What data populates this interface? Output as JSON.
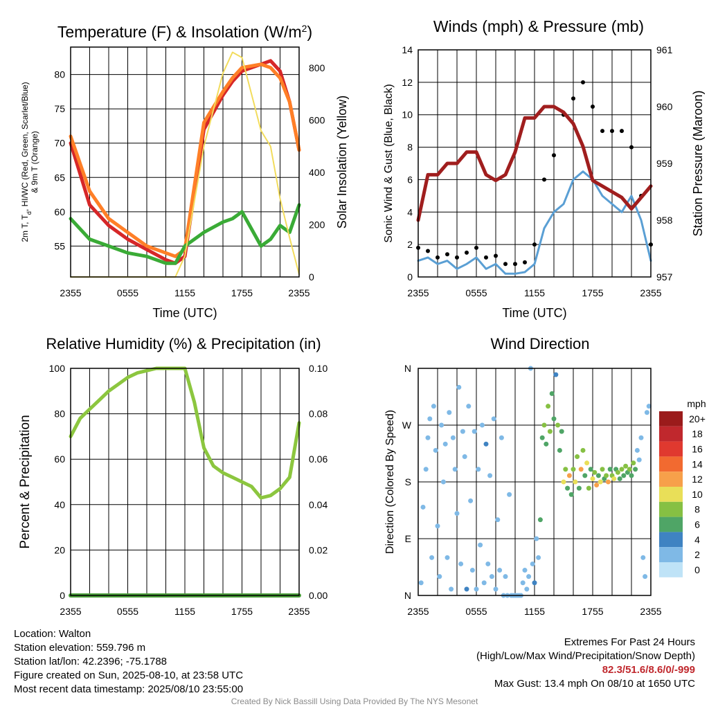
{
  "chart_data": [
    {
      "type": "line",
      "title_main": "Temperature (F) & Insolation (W/m",
      "title_sup": "2",
      "title_end": ")",
      "xlabel": "Time (UTC)",
      "ylabel_lines": [
        "2m T, T",
        "d",
        ", HI/WC (Red, Green, Scarlet/Blue)",
        "& 9m T (Orange)"
      ],
      "ylabel2": "Solar Insolation (Yellow)",
      "xticks": [
        "2355",
        "0555",
        "1155",
        "1755",
        "2355"
      ],
      "yticks": [
        55,
        60,
        65,
        70,
        75,
        80
      ],
      "yticks2": [
        0,
        200,
        400,
        600,
        800
      ],
      "ylim": [
        50.5,
        84
      ],
      "ylim2": [
        0,
        880
      ],
      "x": [
        0,
        2,
        4,
        6,
        8,
        10,
        11,
        12,
        14,
        16,
        17,
        18,
        20,
        21,
        22,
        23,
        24
      ],
      "series": [
        {
          "color": "#d62728",
          "values": [
            70,
            61,
            58,
            56,
            54.5,
            53,
            52.5,
            53.5,
            72,
            77,
            79,
            80.5,
            81.5,
            82,
            80.5,
            76,
            69
          ]
        },
        {
          "color": "#ff7f27",
          "values": [
            71,
            63,
            59,
            57,
            55,
            54,
            53.5,
            54.5,
            73,
            77.5,
            79.5,
            81,
            81.5,
            81,
            79.5,
            76,
            69
          ]
        },
        {
          "color": "#3aab36",
          "values": [
            59,
            56,
            55,
            54,
            53.5,
            52.5,
            52.5,
            55,
            57,
            58.5,
            59,
            60,
            55,
            56,
            58,
            57,
            61
          ]
        },
        {
          "color": "#f2dc5d",
          "values": [
            0,
            0,
            0,
            0,
            0,
            0,
            0,
            80,
            500,
            780,
            860,
            840,
            560,
            500,
            300,
            150,
            10
          ]
        }
      ]
    },
    {
      "type": "line",
      "title": "Winds (mph) & Pressure (mb)",
      "xlabel": "Time (UTC)",
      "ylabel": "Sonic Wind & Gust (Blue, Black)",
      "ylabel2": "Station Pressure (Maroon)",
      "xticks": [
        "2355",
        "0555",
        "1155",
        "1755",
        "2355"
      ],
      "yticks": [
        0,
        2,
        4,
        6,
        8,
        10,
        12,
        14
      ],
      "yticks2": [
        957,
        958,
        959,
        960,
        961
      ],
      "ylim": [
        0,
        14
      ],
      "ylim2": [
        957,
        961
      ],
      "x": [
        0,
        1,
        2,
        3,
        4,
        5,
        6,
        7,
        8,
        9,
        10,
        11,
        12,
        13,
        14,
        15,
        16,
        17,
        18,
        19,
        20,
        21,
        22,
        23,
        24
      ],
      "series": [
        {
          "color": "#5a9fd4",
          "values": [
            1,
            1.2,
            0.8,
            1,
            0.5,
            0.8,
            1.2,
            0.5,
            0.8,
            0.2,
            0.2,
            0.3,
            0.8,
            3,
            4,
            4.5,
            6,
            6.5,
            6,
            5,
            4.5,
            4,
            5,
            3.5,
            1
          ]
        },
        {
          "color": "#000000",
          "values": [
            1.8,
            1.6,
            1.2,
            1.4,
            1.2,
            1.5,
            1.8,
            1.2,
            1.3,
            0.8,
            0.8,
            0.9,
            2,
            6,
            7.5,
            10,
            11,
            12,
            10.5,
            9,
            9,
            9,
            8,
            5,
            2
          ]
        },
        {
          "color": "#a01e1e",
          "values": [
            958,
            958.8,
            958.8,
            959,
            959,
            959.2,
            959.2,
            958.8,
            958.7,
            958.8,
            959.2,
            959.8,
            959.8,
            960,
            960,
            959.9,
            959.7,
            959.3,
            958.7,
            958.6,
            958.5,
            958.4,
            958.2,
            958.4,
            958.6
          ]
        }
      ]
    },
    {
      "type": "line",
      "title": "Relative Humidity (%) & Precipitation (in)",
      "xlabel": "",
      "ylabel": "Percent & Precipitation",
      "xticks": [
        "2355",
        "0555",
        "1155",
        "1755",
        "2355"
      ],
      "yticks": [
        0,
        20,
        40,
        60,
        80,
        100
      ],
      "yticks2": [
        "0.00",
        "0.02",
        "0.04",
        "0.06",
        "0.08",
        "0.10"
      ],
      "ylim": [
        0,
        100
      ],
      "ylim2": [
        0,
        0.1
      ],
      "x": [
        0,
        1,
        2,
        3,
        4,
        5,
        6,
        7,
        8,
        9,
        10,
        11,
        12,
        13,
        14,
        15,
        16,
        17,
        18,
        19,
        20,
        21,
        22,
        23,
        24
      ],
      "series": [
        {
          "color": "#8cc63f",
          "values": [
            70,
            78,
            82,
            86,
            90,
            93,
            96,
            98,
            99,
            100,
            100,
            100,
            100,
            85,
            65,
            57,
            54,
            52,
            50,
            48,
            43,
            44,
            47,
            52,
            76
          ]
        },
        {
          "color": "#4a9e3a",
          "values": [
            0,
            0,
            0,
            0,
            0,
            0,
            0,
            0,
            0,
            0,
            0,
            0,
            0,
            0,
            0,
            0,
            0,
            0,
            0,
            0,
            0,
            0,
            0,
            0,
            0
          ]
        }
      ]
    },
    {
      "type": "scatter",
      "title": "Wind Direction",
      "ylabel": "Direction (Colored By Speed)",
      "xticks": [
        "2355",
        "0555",
        "1155",
        "1755",
        "2355"
      ],
      "yticks": [
        "N",
        "E",
        "S",
        "W",
        "N"
      ],
      "ylim": [
        0,
        360
      ],
      "legend_title": "mph",
      "legend_labels": [
        "20+",
        "18",
        "16",
        "14",
        "12",
        "10",
        "8",
        "6",
        "4",
        "2",
        "0"
      ],
      "legend_colors": [
        "#9b1b1b",
        "#c0282d",
        "#e0392f",
        "#f26a30",
        "#f7a04a",
        "#e9df58",
        "#86c043",
        "#4fa566",
        "#3f83c2",
        "#7fb9e6",
        "#bfe3f7"
      ],
      "points": [
        {
          "x": 0.3,
          "y": 20,
          "s": 1
        },
        {
          "x": 0.5,
          "y": 140,
          "s": 1
        },
        {
          "x": 0.8,
          "y": 200,
          "s": 1
        },
        {
          "x": 1.0,
          "y": 250,
          "s": 1
        },
        {
          "x": 1.2,
          "y": 280,
          "s": 1
        },
        {
          "x": 1.4,
          "y": 60,
          "s": 1
        },
        {
          "x": 1.6,
          "y": 300,
          "s": 1
        },
        {
          "x": 1.8,
          "y": 230,
          "s": 1
        },
        {
          "x": 2.0,
          "y": 110,
          "s": 1
        },
        {
          "x": 2.2,
          "y": 30,
          "s": 1
        },
        {
          "x": 2.4,
          "y": 270,
          "s": 1
        },
        {
          "x": 2.6,
          "y": 180,
          "s": 1
        },
        {
          "x": 2.8,
          "y": 240,
          "s": 1
        },
        {
          "x": 3.0,
          "y": 60,
          "s": 1
        },
        {
          "x": 3.2,
          "y": 290,
          "s": 1
        },
        {
          "x": 3.4,
          "y": 10,
          "s": 1
        },
        {
          "x": 3.6,
          "y": 250,
          "s": 1
        },
        {
          "x": 3.8,
          "y": 200,
          "s": 1
        },
        {
          "x": 4.0,
          "y": 130,
          "s": 1
        },
        {
          "x": 4.2,
          "y": 330,
          "s": 1
        },
        {
          "x": 4.4,
          "y": 50,
          "s": 1
        },
        {
          "x": 4.6,
          "y": 260,
          "s": 1
        },
        {
          "x": 4.8,
          "y": 220,
          "s": 1
        },
        {
          "x": 5.0,
          "y": 10,
          "s": 2
        },
        {
          "x": 5.2,
          "y": 300,
          "s": 1
        },
        {
          "x": 5.4,
          "y": 150,
          "s": 1
        },
        {
          "x": 5.6,
          "y": 40,
          "s": 1
        },
        {
          "x": 5.8,
          "y": 260,
          "s": 1
        },
        {
          "x": 6.0,
          "y": 10,
          "s": 1
        },
        {
          "x": 6.2,
          "y": 200,
          "s": 1
        },
        {
          "x": 6.4,
          "y": 80,
          "s": 1
        },
        {
          "x": 6.6,
          "y": 270,
          "s": 1
        },
        {
          "x": 6.8,
          "y": 20,
          "s": 1
        },
        {
          "x": 7.0,
          "y": 240,
          "s": 2
        },
        {
          "x": 7.2,
          "y": 50,
          "s": 1
        },
        {
          "x": 7.4,
          "y": 190,
          "s": 1
        },
        {
          "x": 7.6,
          "y": 30,
          "s": 1
        },
        {
          "x": 7.8,
          "y": 280,
          "s": 1
        },
        {
          "x": 8.0,
          "y": 10,
          "s": 1
        },
        {
          "x": 8.2,
          "y": 120,
          "s": 1
        },
        {
          "x": 8.4,
          "y": 40,
          "s": 1
        },
        {
          "x": 8.6,
          "y": 250,
          "s": 1
        },
        {
          "x": 8.8,
          "y": 0,
          "s": 1
        },
        {
          "x": 9.0,
          "y": 30,
          "s": 1
        },
        {
          "x": 9.2,
          "y": 0,
          "s": 1
        },
        {
          "x": 9.4,
          "y": 160,
          "s": 1
        },
        {
          "x": 9.6,
          "y": 0,
          "s": 1
        },
        {
          "x": 9.8,
          "y": 0,
          "s": 1
        },
        {
          "x": 10.0,
          "y": 0,
          "s": 1
        },
        {
          "x": 10.2,
          "y": 0,
          "s": 1
        },
        {
          "x": 10.4,
          "y": 0,
          "s": 1
        },
        {
          "x": 10.6,
          "y": 0,
          "s": 1
        },
        {
          "x": 10.8,
          "y": 20,
          "s": 1
        },
        {
          "x": 11.0,
          "y": 40,
          "s": 1
        },
        {
          "x": 11.2,
          "y": 10,
          "s": 1
        },
        {
          "x": 11.4,
          "y": 30,
          "s": 1
        },
        {
          "x": 11.6,
          "y": 360,
          "s": 1
        },
        {
          "x": 11.8,
          "y": 50,
          "s": 1
        },
        {
          "x": 12.0,
          "y": 20,
          "s": 2
        },
        {
          "x": 12.2,
          "y": 90,
          "s": 1
        },
        {
          "x": 12.4,
          "y": 60,
          "s": 1
        },
        {
          "x": 12.6,
          "y": 120,
          "s": 3
        },
        {
          "x": 12.8,
          "y": 250,
          "s": 3
        },
        {
          "x": 13.0,
          "y": 270,
          "s": 4
        },
        {
          "x": 13.2,
          "y": 240,
          "s": 3
        },
        {
          "x": 13.4,
          "y": 300,
          "s": 4
        },
        {
          "x": 13.6,
          "y": 260,
          "s": 4
        },
        {
          "x": 13.8,
          "y": 320,
          "s": 3
        },
        {
          "x": 14.0,
          "y": 280,
          "s": 3
        },
        {
          "x": 14.2,
          "y": 350,
          "s": 2
        },
        {
          "x": 14.4,
          "y": 270,
          "s": 4
        },
        {
          "x": 14.6,
          "y": 230,
          "s": 3
        },
        {
          "x": 14.8,
          "y": 260,
          "s": 3
        },
        {
          "x": 15.0,
          "y": 180,
          "s": 5
        },
        {
          "x": 15.2,
          "y": 200,
          "s": 4
        },
        {
          "x": 15.4,
          "y": 170,
          "s": 3
        },
        {
          "x": 15.6,
          "y": 190,
          "s": 6
        },
        {
          "x": 15.8,
          "y": 160,
          "s": 3
        },
        {
          "x": 16.0,
          "y": 200,
          "s": 4
        },
        {
          "x": 16.2,
          "y": 180,
          "s": 5
        },
        {
          "x": 16.4,
          "y": 220,
          "s": 4
        },
        {
          "x": 16.6,
          "y": 170,
          "s": 3
        },
        {
          "x": 16.8,
          "y": 200,
          "s": 6
        },
        {
          "x": 17.0,
          "y": 230,
          "s": 4
        },
        {
          "x": 17.2,
          "y": 190,
          "s": 3
        },
        {
          "x": 17.4,
          "y": 210,
          "s": 5
        },
        {
          "x": 17.6,
          "y": 170,
          "s": 4
        },
        {
          "x": 17.8,
          "y": 200,
          "s": 3
        },
        {
          "x": 18.0,
          "y": 185,
          "s": 5
        },
        {
          "x": 18.2,
          "y": 195,
          "s": 4
        },
        {
          "x": 18.4,
          "y": 175,
          "s": 6
        },
        {
          "x": 18.6,
          "y": 190,
          "s": 3
        },
        {
          "x": 18.8,
          "y": 180,
          "s": 5
        },
        {
          "x": 19.0,
          "y": 200,
          "s": 4
        },
        {
          "x": 19.2,
          "y": 185,
          "s": 3
        },
        {
          "x": 19.4,
          "y": 190,
          "s": 4
        },
        {
          "x": 19.6,
          "y": 180,
          "s": 6
        },
        {
          "x": 19.8,
          "y": 200,
          "s": 3
        },
        {
          "x": 20.0,
          "y": 190,
          "s": 4
        },
        {
          "x": 20.2,
          "y": 185,
          "s": 5
        },
        {
          "x": 20.4,
          "y": 200,
          "s": 3
        },
        {
          "x": 20.6,
          "y": 195,
          "s": 4
        },
        {
          "x": 20.8,
          "y": 185,
          "s": 3
        },
        {
          "x": 21.0,
          "y": 200,
          "s": 4
        },
        {
          "x": 21.2,
          "y": 190,
          "s": 3
        },
        {
          "x": 21.4,
          "y": 205,
          "s": 4
        },
        {
          "x": 21.6,
          "y": 195,
          "s": 3
        },
        {
          "x": 21.8,
          "y": 200,
          "s": 4
        },
        {
          "x": 22.0,
          "y": 190,
          "s": 3
        },
        {
          "x": 22.2,
          "y": 210,
          "s": 4
        },
        {
          "x": 22.4,
          "y": 200,
          "s": 3
        },
        {
          "x": 22.6,
          "y": 230,
          "s": 1
        },
        {
          "x": 22.8,
          "y": 215,
          "s": 1
        },
        {
          "x": 23.0,
          "y": 250,
          "s": 1
        },
        {
          "x": 23.2,
          "y": 60,
          "s": 1
        },
        {
          "x": 23.4,
          "y": 30,
          "s": 1
        },
        {
          "x": 23.6,
          "y": 290,
          "s": 1
        },
        {
          "x": 23.8,
          "y": 300,
          "s": 1
        }
      ]
    }
  ],
  "meta_left": [
    "Location: Walton",
    "Station elevation: 559.796 m",
    "Station lat/lon: 42.2396; -75.1788",
    "Figure created on Sun, 2025-08-10, at 23:58 UTC",
    "Most recent data timestamp: 2025/08/10 23:55:00"
  ],
  "meta_right": {
    "line1": "Extremes For Past 24 Hours",
    "line2": "(High/Low/Max Wind/Precipitation/Snow Depth)",
    "values": "82.3/51.6/8.6/0/-999",
    "gust": "Max Gust: 13.4 mph On 08/10 at 1650 UTC"
  },
  "credit": "Created By Nick Bassill Using Data Provided By The NYS Mesonet"
}
